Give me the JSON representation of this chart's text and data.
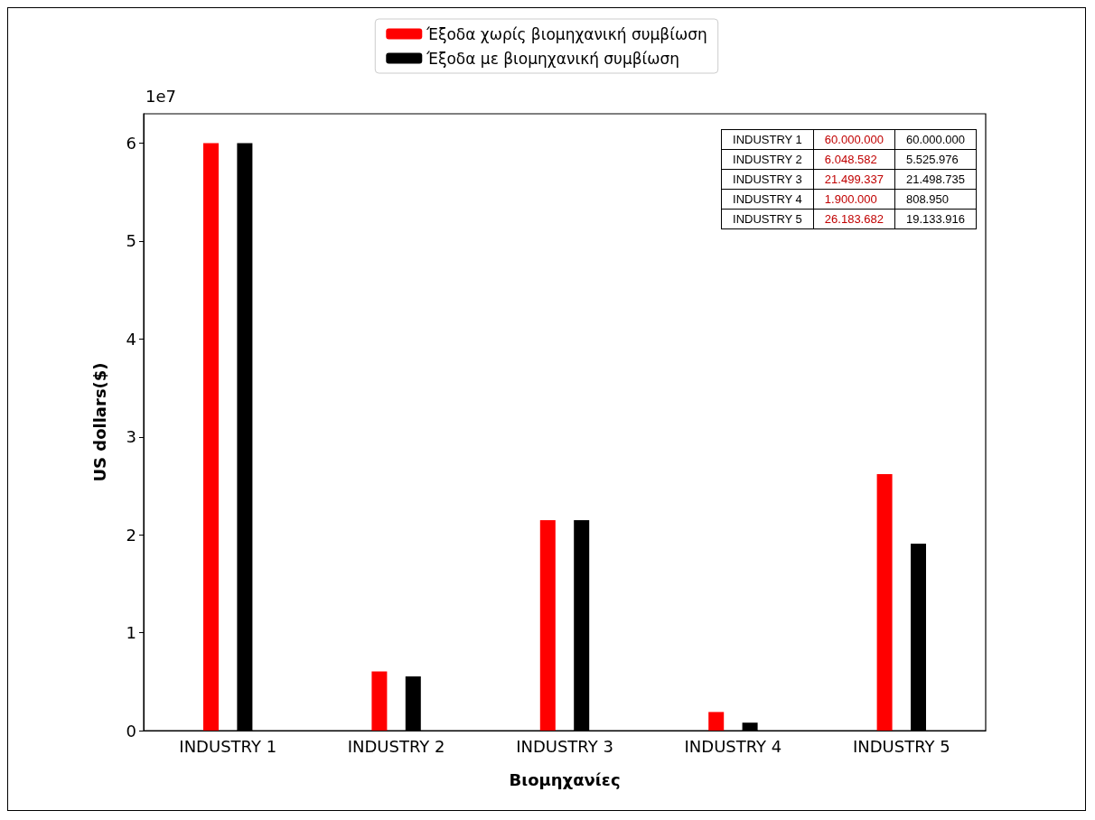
{
  "chart_data": [
    {
      "type": "bar",
      "xlabel": "Βιομηχανίες",
      "ylabel": "US dollars($)",
      "categories": [
        "INDUSTRY 1",
        "INDUSTRY 2",
        "INDUSTRY 3",
        "INDUSTRY 4",
        "INDUSTRY 5"
      ],
      "series": [
        {
          "name": "Έξοδα χωρίς βιομηχανική συμβίωση",
          "color": "#ff0000",
          "values": [
            6,
            0.605,
            2.15,
            0.19,
            2.62
          ]
        },
        {
          "name": "Έξοδα με βιομηχανική συμβίωση",
          "color": "#000000",
          "values": [
            6,
            0.553,
            2.15,
            0.081,
            1.91
          ]
        }
      ],
      "ylim": [
        0,
        6.3
      ],
      "yticks": [
        0,
        1,
        2,
        3,
        4,
        5,
        6
      ],
      "annotations": [
        "1e7"
      ],
      "legend": "top",
      "grid": false
    },
    {
      "type": "other",
      "annotations": [
        "INDUSTRY 1",
        "60.000.000",
        "60.000.000",
        "INDUSTRY 2",
        "6.048.582",
        "5.525.976",
        "INDUSTRY 3",
        "21.499.337",
        "21.498.735",
        "INDUSTRY 4",
        "1.900.000",
        "808.950",
        "INDUSTRY 5",
        "26.183.682",
        "19.133.916"
      ]
    }
  ]
}
